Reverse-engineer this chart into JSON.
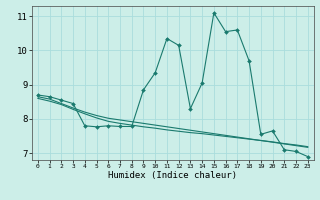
{
  "xlabel": "Humidex (Indice chaleur)",
  "background_color": "#cceee8",
  "grid_color": "#aadddd",
  "line_color": "#1a7a6e",
  "xlim": [
    -0.5,
    23.5
  ],
  "ylim": [
    6.8,
    11.3
  ],
  "yticks": [
    7,
    8,
    9,
    10,
    11
  ],
  "xticks": [
    0,
    1,
    2,
    3,
    4,
    5,
    6,
    7,
    8,
    9,
    10,
    11,
    12,
    13,
    14,
    15,
    16,
    17,
    18,
    19,
    20,
    21,
    22,
    23
  ],
  "series1_x": [
    0,
    1,
    2,
    3,
    4,
    5,
    6,
    7,
    8,
    9,
    10,
    11,
    12,
    13,
    14,
    15,
    16,
    17,
    18,
    19,
    20,
    21,
    22,
    23
  ],
  "series1_y": [
    8.7,
    8.65,
    8.55,
    8.45,
    7.8,
    7.77,
    7.8,
    7.78,
    7.78,
    8.85,
    9.35,
    10.35,
    10.15,
    8.3,
    9.05,
    11.1,
    10.55,
    10.6,
    9.7,
    7.55,
    7.65,
    7.1,
    7.05,
    6.9
  ],
  "series2_x": [
    0,
    1,
    2,
    3,
    4,
    5,
    6,
    7,
    8,
    9,
    10,
    11,
    12,
    13,
    14,
    15,
    16,
    17,
    18,
    19,
    20,
    21,
    22,
    23
  ],
  "series2_y": [
    8.65,
    8.58,
    8.45,
    8.32,
    8.2,
    8.1,
    8.02,
    7.97,
    7.92,
    7.87,
    7.82,
    7.77,
    7.72,
    7.67,
    7.62,
    7.57,
    7.52,
    7.47,
    7.42,
    7.37,
    7.32,
    7.27,
    7.22,
    7.17
  ],
  "series3_x": [
    0,
    1,
    2,
    3,
    4,
    5,
    6,
    7,
    8,
    9,
    10,
    11,
    12,
    13,
    14,
    15,
    16,
    17,
    18,
    19,
    20,
    21,
    22,
    23
  ],
  "series3_y": [
    8.6,
    8.52,
    8.42,
    8.28,
    8.15,
    8.03,
    7.93,
    7.87,
    7.82,
    7.77,
    7.73,
    7.68,
    7.64,
    7.6,
    7.57,
    7.53,
    7.49,
    7.45,
    7.41,
    7.37,
    7.33,
    7.28,
    7.24,
    7.19
  ]
}
